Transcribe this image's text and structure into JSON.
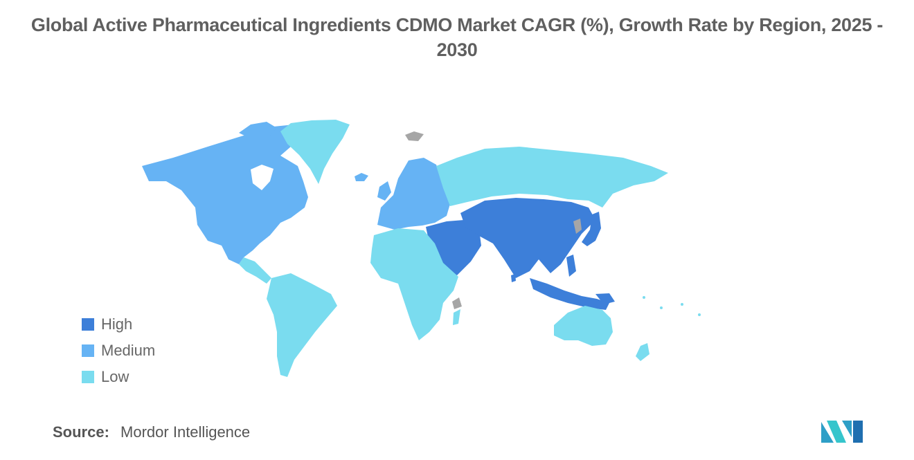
{
  "title": "Global Active Pharmaceutical Ingredients CDMO Market CAGR (%), Growth Rate by Region, 2025 - 2030",
  "legend": [
    {
      "label": "High",
      "color": "#3d7fd9"
    },
    {
      "label": "Medium",
      "color": "#66b3f4"
    },
    {
      "label": "Low",
      "color": "#7adcef"
    }
  ],
  "source": {
    "label": "Source:",
    "value": "Mordor Intelligence"
  },
  "colors": {
    "no_data": "#a6a6a6",
    "title": "#5f5f5f"
  },
  "regions": [
    {
      "name": "North America",
      "level": "Medium"
    },
    {
      "name": "Europe",
      "level": "Medium"
    },
    {
      "name": "Asia-Pacific",
      "level": "High"
    },
    {
      "name": "Middle East",
      "level": "High"
    },
    {
      "name": "South America",
      "level": "Low"
    },
    {
      "name": "Africa",
      "level": "Low"
    },
    {
      "name": "Russia",
      "level": "Low"
    },
    {
      "name": "Greenland",
      "level": "Low"
    },
    {
      "name": "Australia and New Zealand",
      "level": "Low"
    }
  ]
}
